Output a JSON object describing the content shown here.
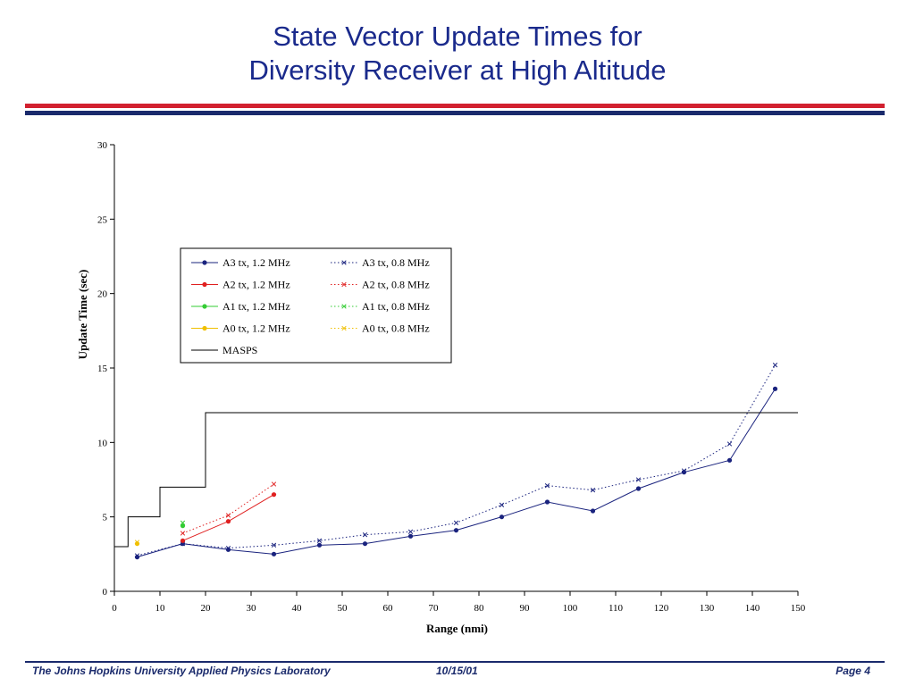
{
  "slide": {
    "title_line1": "State Vector Update Times for",
    "title_line2": "Diversity Receiver at High Altitude",
    "footer_left": "The Johns Hopkins University Applied Physics Laboratory",
    "footer_date": "10/15/01",
    "footer_page": "Page 4"
  },
  "colors": {
    "title": "#1a2a8c",
    "band_red": "#d2202f",
    "band_navy": "#1a2a6c"
  },
  "chart_data": {
    "type": "line",
    "title": "",
    "xlabel": "Range (nmi)",
    "ylabel": "Update Time (sec)",
    "xlim": [
      0,
      150
    ],
    "ylim": [
      0,
      30
    ],
    "xticks": [
      0,
      10,
      20,
      30,
      40,
      50,
      60,
      70,
      80,
      90,
      100,
      110,
      120,
      130,
      140,
      150
    ],
    "yticks": [
      0,
      5,
      10,
      15,
      20,
      25,
      30
    ],
    "grid": false,
    "legend_position": "top-left",
    "series": [
      {
        "name": "A3 tx, 1.2 MHz",
        "color": "#1a237e",
        "style": "solid",
        "marker": "dot",
        "x": [
          5,
          15,
          25,
          35,
          45,
          55,
          65,
          75,
          85,
          95,
          105,
          115,
          125,
          135,
          145
        ],
        "y": [
          2.3,
          3.2,
          2.8,
          2.5,
          3.1,
          3.2,
          3.7,
          4.1,
          5.0,
          6.0,
          5.4,
          6.9,
          8.0,
          8.8,
          13.6
        ]
      },
      {
        "name": "A3 tx, 0.8 MHz",
        "color": "#1a237e",
        "style": "dotted",
        "marker": "x",
        "x": [
          5,
          15,
          25,
          35,
          45,
          55,
          65,
          75,
          85,
          95,
          105,
          115,
          125,
          135,
          145
        ],
        "y": [
          2.4,
          3.2,
          2.9,
          3.1,
          3.4,
          3.8,
          4.0,
          4.6,
          5.8,
          7.1,
          6.8,
          7.5,
          8.1,
          9.9,
          15.2
        ]
      },
      {
        "name": "A2 tx, 1.2 MHz",
        "color": "#e02020",
        "style": "solid",
        "marker": "dot",
        "x": [
          15,
          25,
          35
        ],
        "y": [
          3.4,
          4.7,
          6.5
        ]
      },
      {
        "name": "A2 tx, 0.8 MHz",
        "color": "#e02020",
        "style": "dotted",
        "marker": "x",
        "x": [
          15,
          25,
          35
        ],
        "y": [
          3.9,
          5.1,
          7.2
        ]
      },
      {
        "name": "A1 tx, 1.2 MHz",
        "color": "#33cc33",
        "style": "solid",
        "marker": "dot",
        "x": [
          15
        ],
        "y": [
          4.4
        ]
      },
      {
        "name": "A1 tx, 0.8 MHz",
        "color": "#33cc33",
        "style": "dotted",
        "marker": "x",
        "x": [
          15
        ],
        "y": [
          4.6
        ]
      },
      {
        "name": "A0 tx, 1.2 MHz",
        "color": "#f0c000",
        "style": "solid",
        "marker": "dot",
        "x": [
          5
        ],
        "y": [
          3.2
        ]
      },
      {
        "name": "A0 tx, 0.8 MHz",
        "color": "#f0c000",
        "style": "dotted",
        "marker": "x",
        "x": [
          5
        ],
        "y": [
          3.3
        ]
      },
      {
        "name": "MASPS",
        "color": "#000000",
        "style": "solid",
        "marker": "none",
        "x": [
          0,
          3,
          3,
          10,
          10,
          20,
          20,
          150
        ],
        "y": [
          3,
          3,
          5,
          5,
          7,
          7,
          12,
          12
        ]
      }
    ]
  }
}
